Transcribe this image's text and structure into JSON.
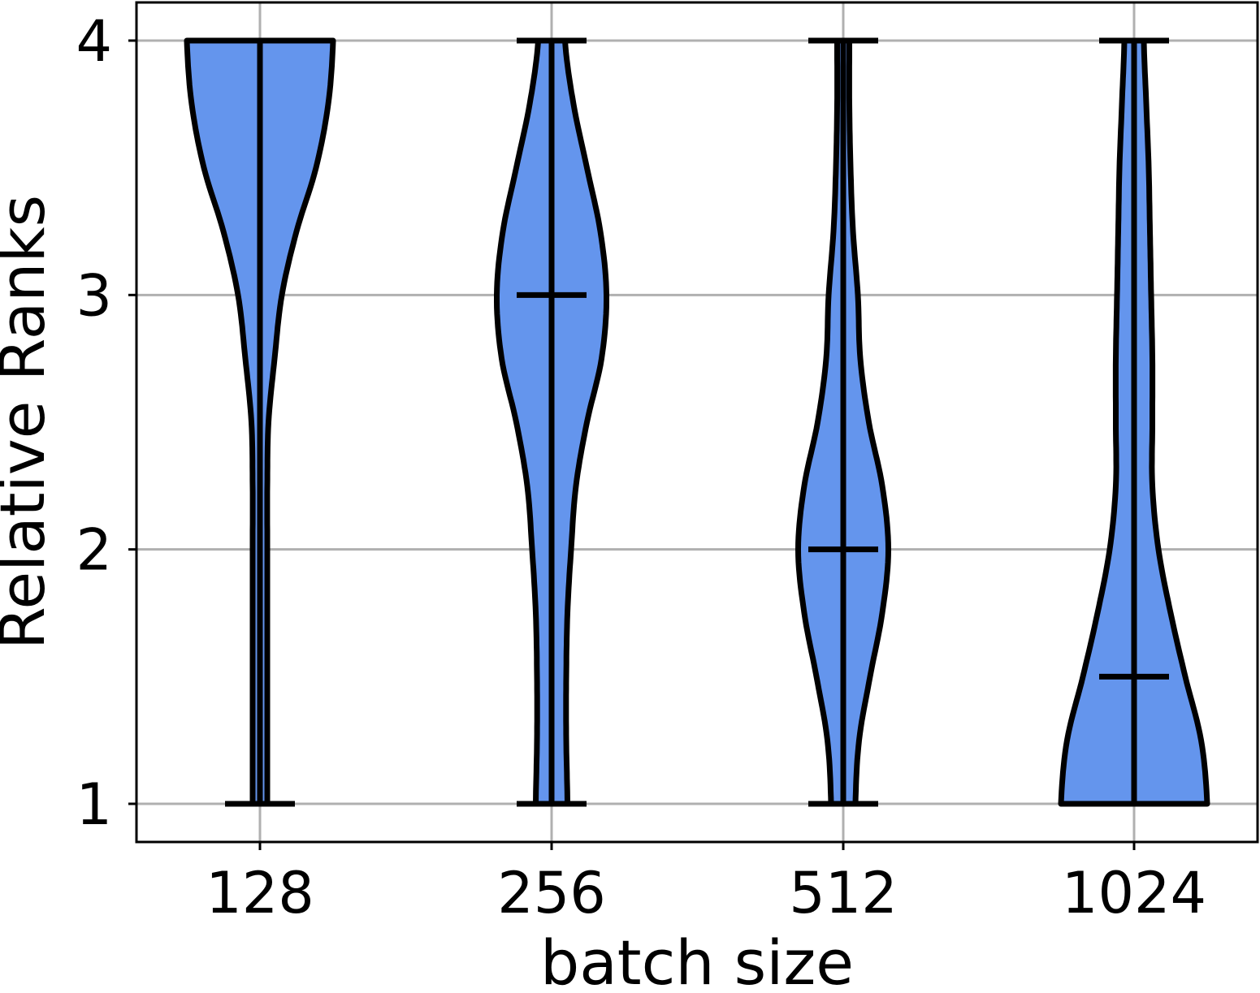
{
  "chart_data": {
    "type": "violin",
    "xlabel": "batch size",
    "ylabel": "Relative Ranks",
    "categories": [
      "128",
      "256",
      "512",
      "1024"
    ],
    "yticks": [
      1,
      2,
      3,
      4
    ],
    "ylim": [
      0.85,
      4.15
    ],
    "grid": true,
    "fill_color": "#6495ED",
    "edge_color": "#000000",
    "violins": [
      {
        "category": "128",
        "min": 1,
        "max": 4,
        "median": null,
        "density": [
          [
            1.0,
            0.06
          ],
          [
            1.25,
            0.06
          ],
          [
            1.5,
            0.06
          ],
          [
            1.75,
            0.06
          ],
          [
            2.0,
            0.06
          ],
          [
            2.25,
            0.06
          ],
          [
            2.5,
            0.07
          ],
          [
            2.75,
            0.12
          ],
          [
            3.0,
            0.18
          ],
          [
            3.25,
            0.3
          ],
          [
            3.5,
            0.46
          ],
          [
            3.75,
            0.56
          ],
          [
            4.0,
            0.6
          ]
        ]
      },
      {
        "category": "256",
        "min": 1,
        "max": 4,
        "median": 3,
        "density": [
          [
            1.0,
            0.13
          ],
          [
            1.25,
            0.12
          ],
          [
            1.5,
            0.12
          ],
          [
            1.75,
            0.13
          ],
          [
            2.0,
            0.16
          ],
          [
            2.25,
            0.2
          ],
          [
            2.5,
            0.29
          ],
          [
            2.75,
            0.41
          ],
          [
            3.0,
            0.45
          ],
          [
            3.25,
            0.4
          ],
          [
            3.5,
            0.29
          ],
          [
            3.75,
            0.18
          ],
          [
            4.0,
            0.11
          ]
        ]
      },
      {
        "category": "512",
        "min": 1,
        "max": 4,
        "median": 2,
        "density": [
          [
            1.0,
            0.1
          ],
          [
            1.25,
            0.13
          ],
          [
            1.5,
            0.22
          ],
          [
            1.75,
            0.32
          ],
          [
            2.0,
            0.37
          ],
          [
            2.25,
            0.32
          ],
          [
            2.5,
            0.21
          ],
          [
            2.75,
            0.14
          ],
          [
            3.0,
            0.12
          ],
          [
            3.25,
            0.08
          ],
          [
            3.5,
            0.06
          ],
          [
            3.75,
            0.05
          ],
          [
            4.0,
            0.05
          ]
        ]
      },
      {
        "category": "1024",
        "min": 1,
        "max": 4,
        "median": 1.5,
        "density": [
          [
            1.0,
            0.6
          ],
          [
            1.25,
            0.55
          ],
          [
            1.5,
            0.42
          ],
          [
            1.75,
            0.3
          ],
          [
            2.0,
            0.2
          ],
          [
            2.25,
            0.15
          ],
          [
            2.5,
            0.15
          ],
          [
            2.75,
            0.15
          ],
          [
            3.0,
            0.14
          ],
          [
            3.25,
            0.13
          ],
          [
            3.5,
            0.12
          ],
          [
            3.75,
            0.1
          ],
          [
            4.0,
            0.08
          ]
        ]
      }
    ]
  }
}
